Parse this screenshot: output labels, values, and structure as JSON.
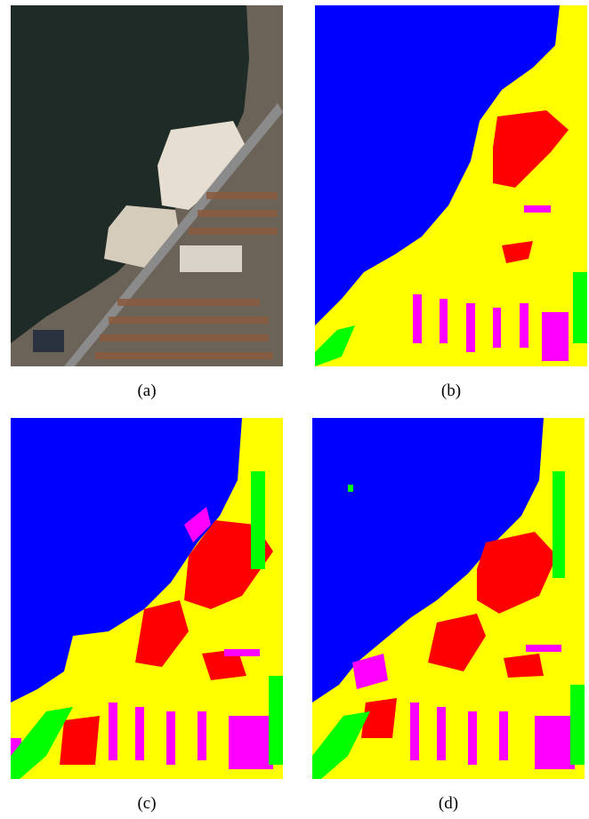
{
  "figure": {
    "panels": [
      {
        "id": "a",
        "caption": "(a)",
        "kind": "satellite-image"
      },
      {
        "id": "b",
        "caption": "(b)",
        "kind": "classification-map"
      },
      {
        "id": "c",
        "caption": "(c)",
        "kind": "classification-map"
      },
      {
        "id": "d",
        "caption": "(d)",
        "kind": "classification-map"
      }
    ]
  },
  "colors": {
    "water": "#0000ff",
    "bare": "#ffff00",
    "red": "#ff0000",
    "magenta": "#ff00ff",
    "green": "#00ff00",
    "sea_dark": "#1e2a26",
    "sand": "#e6ded0"
  }
}
